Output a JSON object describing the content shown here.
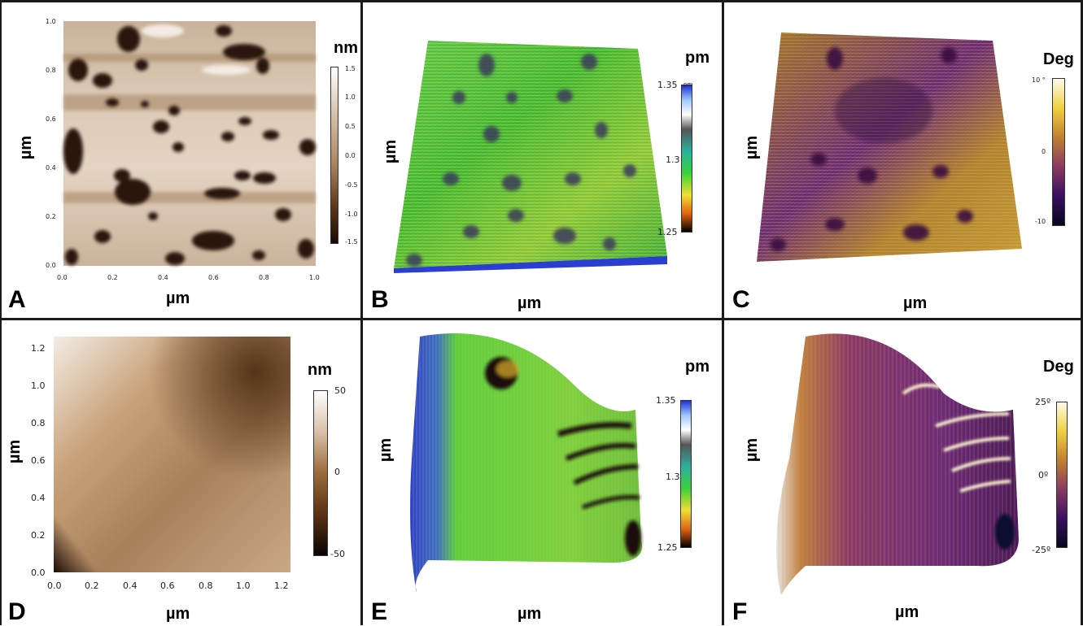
{
  "panels": {
    "A": {
      "letter": "A",
      "xunit": "µm",
      "yunit": "µm",
      "cbar_unit": "nm",
      "xticks": [
        "0.0",
        "0.2",
        "0.4",
        "0.6",
        "0.8",
        "1.0"
      ],
      "yticks": [
        "0.0",
        "0.2",
        "0.4",
        "0.6",
        "0.8",
        "1.0"
      ],
      "cbar_ticks": [
        "1.5",
        "1.0",
        "0.5",
        "0.0",
        "-0.5",
        "-1.0",
        "-1.5"
      ]
    },
    "B": {
      "letter": "B",
      "xunit": "µm",
      "yunit": "µm",
      "cbar_unit": "pm",
      "cbar_ticks": [
        "1.35",
        "1.3",
        "1.25"
      ],
      "cbar_top_suffix": "pm"
    },
    "C": {
      "letter": "C",
      "xunit": "µm",
      "yunit": "µm",
      "cbar_unit": "Deg",
      "cbar_ticks": [
        "10 °",
        "0",
        "-10"
      ]
    },
    "D": {
      "letter": "D",
      "xunit": "µm",
      "yunit": "µm",
      "cbar_unit": "nm",
      "xticks": [
        "0.0",
        "0.2",
        "0.4",
        "0.6",
        "0.8",
        "1.0",
        "1.2"
      ],
      "yticks": [
        "0.0",
        "0.2",
        "0.4",
        "0.6",
        "0.8",
        "1.0",
        "1.2"
      ],
      "cbar_ticks": [
        "50",
        "0",
        "-50"
      ]
    },
    "E": {
      "letter": "E",
      "xunit": "µm",
      "yunit": "µm",
      "cbar_unit": "pm",
      "cbar_ticks": [
        "1.35",
        "1.3",
        "1.25"
      ],
      "cbar_top_suffix": "pm"
    },
    "F": {
      "letter": "F",
      "xunit": "µm",
      "yunit": "µm",
      "cbar_unit": "Deg",
      "cbar_ticks": [
        "25º",
        "0º",
        "-25º"
      ]
    }
  },
  "colors": {
    "afm_light": "#e6d9c9",
    "afm_mid": "#b38b67",
    "afm_dark": "#2a1608",
    "spectrum_green": "#35c23a",
    "spectrum_blue": "#2a3fd0",
    "phase_purple": "#4a1a6a",
    "phase_gold": "#c8962a"
  }
}
